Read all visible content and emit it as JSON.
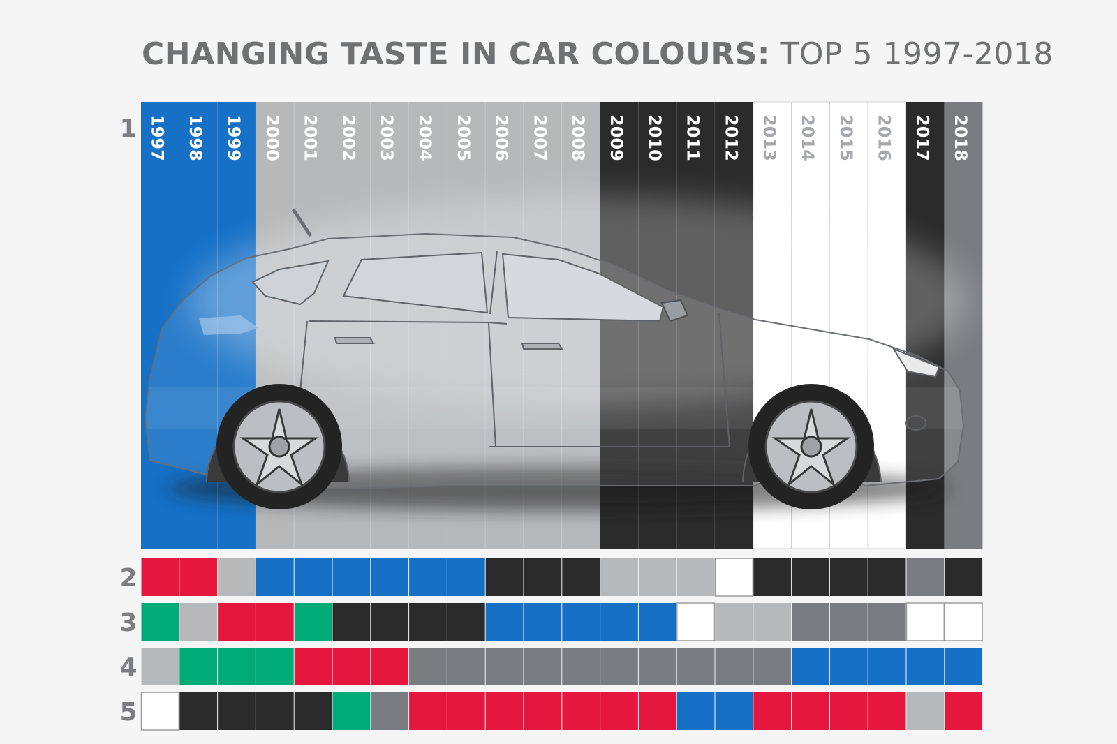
{
  "title": {
    "bold": "CHANGING TASTE IN CAR COLOURS:",
    "light": "TOP 5 1997-2018"
  },
  "colors": {
    "blue": "#1570c6",
    "red": "#e5173e",
    "silver": "#b7b8ba",
    "grey": "#7b7c7f",
    "black": "#2b2b2c",
    "white": "#ffffff",
    "green": "#00ab78",
    "rank_label": "#7c7d80"
  },
  "chart_data": {
    "type": "table",
    "rows": [
      "1",
      "2",
      "3",
      "4",
      "5"
    ],
    "years": [
      "1997",
      "1998",
      "1999",
      "2000",
      "2001",
      "2002",
      "2003",
      "2004",
      "2005",
      "2006",
      "2007",
      "2008",
      "2009",
      "2010",
      "2011",
      "2012",
      "2013",
      "2014",
      "2015",
      "2016",
      "2017",
      "2018"
    ],
    "ranks": {
      "1": [
        "blue",
        "blue",
        "blue",
        "silver",
        "silver",
        "silver",
        "silver",
        "silver",
        "silver",
        "silver",
        "silver",
        "silver",
        "black",
        "black",
        "black",
        "black",
        "white",
        "white",
        "white",
        "white",
        "black",
        "grey"
      ],
      "2": [
        "red",
        "red",
        "silver",
        "blue",
        "blue",
        "blue",
        "blue",
        "blue",
        "blue",
        "black",
        "black",
        "black",
        "silver",
        "silver",
        "silver",
        "white",
        "black",
        "black",
        "black",
        "black",
        "grey",
        "black"
      ],
      "3": [
        "green",
        "silver",
        "red",
        "red",
        "green",
        "black",
        "black",
        "black",
        "black",
        "blue",
        "blue",
        "blue",
        "blue",
        "blue",
        "white",
        "silver",
        "silver",
        "grey",
        "grey",
        "grey",
        "white",
        "white"
      ],
      "4": [
        "silver",
        "green",
        "green",
        "green",
        "red",
        "red",
        "red",
        "grey",
        "grey",
        "grey",
        "grey",
        "grey",
        "grey",
        "grey",
        "grey",
        "grey",
        "grey",
        "blue",
        "blue",
        "blue",
        "blue",
        "blue"
      ],
      "5": [
        "white",
        "black",
        "black",
        "black",
        "black",
        "green",
        "grey",
        "red",
        "red",
        "red",
        "red",
        "red",
        "red",
        "red",
        "blue",
        "blue",
        "red",
        "red",
        "red",
        "red",
        "silver",
        "red"
      ]
    }
  }
}
